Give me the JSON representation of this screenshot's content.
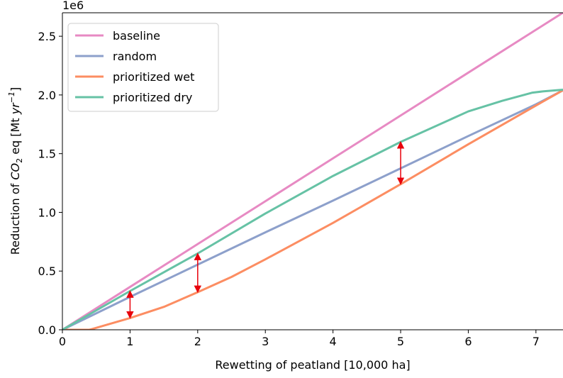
{
  "chart_data": {
    "type": "line",
    "xlabel": "Rewetting of peatland [10,000 ha]",
    "ylabel": {
      "prefix": "Reduction of ",
      "co": "CO",
      "sub2": "2",
      "mid": " eq [Mt  ",
      "yr": "yr",
      "sup": "−1",
      "suffix": "]"
    },
    "offset_text": "1e6",
    "xlim": [
      0,
      7.4
    ],
    "ylim": [
      0,
      2700000
    ],
    "x_ticks": [
      0,
      1,
      2,
      3,
      4,
      5,
      6,
      7
    ],
    "x_tick_labels": [
      "0",
      "1",
      "2",
      "3",
      "4",
      "5",
      "6",
      "7"
    ],
    "y_ticks": [
      0,
      500000,
      1000000,
      1500000,
      2000000,
      2500000
    ],
    "y_tick_labels": [
      "0.0",
      "0.5",
      "1.0",
      "1.5",
      "2.0",
      "2.5"
    ],
    "grid": false,
    "legend_position": "upper-left",
    "series": [
      {
        "name": "baseline",
        "color": "#e78ac3",
        "points": [
          [
            0,
            0
          ],
          [
            1,
            365000
          ],
          [
            2,
            730000
          ],
          [
            3,
            1095000
          ],
          [
            4,
            1460000
          ],
          [
            5,
            1825000
          ],
          [
            6,
            2190000
          ],
          [
            7,
            2555000
          ],
          [
            7.4,
            2701000
          ]
        ]
      },
      {
        "name": "random",
        "color": "#8da0cb",
        "points": [
          [
            0,
            0
          ],
          [
            1,
            280000
          ],
          [
            2,
            555000
          ],
          [
            3,
            830000
          ],
          [
            4,
            1100000
          ],
          [
            5,
            1375000
          ],
          [
            6,
            1650000
          ],
          [
            7,
            1920000
          ],
          [
            7.4,
            2040000
          ]
        ]
      },
      {
        "name": "prioritized wet",
        "color": "#fc8d62",
        "points": [
          [
            0,
            0
          ],
          [
            0.4,
            0
          ],
          [
            1,
            100000
          ],
          [
            1.5,
            195000
          ],
          [
            2,
            320000
          ],
          [
            2.5,
            450000
          ],
          [
            3,
            600000
          ],
          [
            4,
            910000
          ],
          [
            5,
            1240000
          ],
          [
            6,
            1580000
          ],
          [
            7,
            1910000
          ],
          [
            7.4,
            2040000
          ]
        ]
      },
      {
        "name": "prioritized dry",
        "color": "#66c2a5",
        "points": [
          [
            0,
            0
          ],
          [
            1,
            330000
          ],
          [
            2,
            650000
          ],
          [
            3,
            990000
          ],
          [
            4,
            1310000
          ],
          [
            5,
            1600000
          ],
          [
            6,
            1860000
          ],
          [
            6.5,
            1950000
          ],
          [
            6.95,
            2020000
          ],
          [
            7.1,
            2030000
          ],
          [
            7.4,
            2045000
          ]
        ]
      }
    ],
    "annotations": {
      "arrow_color": "#e8000b",
      "arrows": [
        {
          "x": 1,
          "y_from": 100000,
          "y_to": 330000
        },
        {
          "x": 2,
          "y_from": 320000,
          "y_to": 650000
        },
        {
          "x": 5,
          "y_from": 1240000,
          "y_to": 1600000
        }
      ]
    }
  }
}
